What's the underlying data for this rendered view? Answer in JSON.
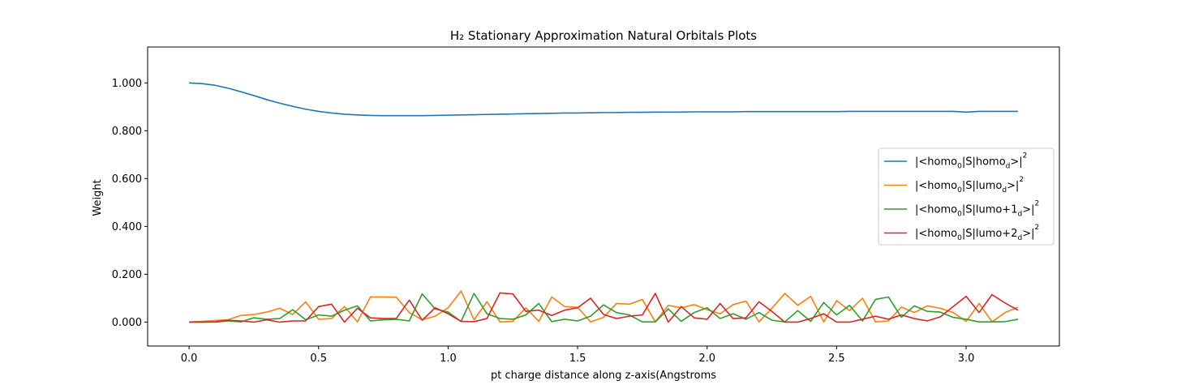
{
  "chart_data": {
    "type": "line",
    "title": "H₂ Stationary Approximation Natural Orbitals Plots",
    "xlabel": "pt charge distance along z-axis(Angstroms",
    "ylabel": "Weight",
    "xlim": [
      -0.16,
      3.36
    ],
    "ylim": [
      -0.1,
      1.15
    ],
    "xticks": [
      0.0,
      0.5,
      1.0,
      1.5,
      2.0,
      2.5,
      3.0
    ],
    "xtick_labels": [
      "0.0",
      "0.5",
      "1.0",
      "1.5",
      "2.0",
      "2.5",
      "3.0"
    ],
    "yticks": [
      0.0,
      0.2,
      0.4,
      0.6,
      0.8,
      1.0
    ],
    "ytick_labels": [
      "0.000",
      "0.200",
      "0.400",
      "0.600",
      "0.800",
      "1.000"
    ],
    "grid": false,
    "legend_position": "center-right",
    "x": [
      0.0,
      0.05,
      0.1,
      0.15,
      0.2,
      0.25,
      0.3,
      0.35,
      0.4,
      0.45,
      0.5,
      0.55,
      0.6,
      0.65,
      0.7,
      0.75,
      0.8,
      0.85,
      0.9,
      0.95,
      1.0,
      1.05,
      1.1,
      1.15,
      1.2,
      1.25,
      1.3,
      1.35,
      1.4,
      1.45,
      1.5,
      1.55,
      1.6,
      1.65,
      1.7,
      1.75,
      1.8,
      1.85,
      1.9,
      1.95,
      2.0,
      2.05,
      2.1,
      2.15,
      2.2,
      2.25,
      2.3,
      2.35,
      2.4,
      2.45,
      2.5,
      2.55,
      2.6,
      2.65,
      2.7,
      2.75,
      2.8,
      2.85,
      2.9,
      2.95,
      3.0,
      3.05,
      3.1,
      3.15,
      3.2
    ],
    "series": [
      {
        "name": "|<homo0|S|homod>|2",
        "label_parts": {
          "pre": "|<homo",
          "sub1": "0",
          "mid": "|S|homo",
          "sub2": "d",
          "post": ">|",
          "sup": "2"
        },
        "color": "#1f77b4",
        "values": [
          1.0,
          0.997,
          0.99,
          0.978,
          0.963,
          0.947,
          0.93,
          0.915,
          0.902,
          0.89,
          0.881,
          0.874,
          0.869,
          0.866,
          0.864,
          0.863,
          0.863,
          0.863,
          0.863,
          0.864,
          0.865,
          0.866,
          0.867,
          0.868,
          0.869,
          0.87,
          0.871,
          0.872,
          0.873,
          0.874,
          0.874,
          0.875,
          0.876,
          0.876,
          0.877,
          0.877,
          0.878,
          0.878,
          0.878,
          0.879,
          0.879,
          0.879,
          0.879,
          0.88,
          0.88,
          0.88,
          0.88,
          0.88,
          0.88,
          0.88,
          0.88,
          0.881,
          0.881,
          0.881,
          0.881,
          0.881,
          0.881,
          0.881,
          0.881,
          0.881,
          0.878,
          0.881,
          0.881,
          0.881,
          0.881
        ]
      },
      {
        "name": "|<homo0|S|lumod>|2",
        "label_parts": {
          "pre": "|<homo",
          "sub1": "0",
          "mid": "|S|lumo",
          "sub2": "d",
          "post": ">|",
          "sup": "2"
        },
        "color": "#ff7f0e",
        "values": [
          0.0,
          0.003,
          0.007,
          0.01,
          0.028,
          0.032,
          0.042,
          0.058,
          0.032,
          0.085,
          0.012,
          0.015,
          0.065,
          0.001,
          0.105,
          0.105,
          0.104,
          0.04,
          0.01,
          0.025,
          0.06,
          0.13,
          0.01,
          0.085,
          0.001,
          0.003,
          0.06,
          0.003,
          0.105,
          0.065,
          0.062,
          0.001,
          0.02,
          0.078,
          0.075,
          0.095,
          0.001,
          0.07,
          0.06,
          0.073,
          0.052,
          0.035,
          0.073,
          0.088,
          0.001,
          0.058,
          0.12,
          0.07,
          0.108,
          0.001,
          0.09,
          0.048,
          0.1,
          0.001,
          0.005,
          0.063,
          0.04,
          0.068,
          0.058,
          0.04,
          0.003,
          0.078,
          0.001,
          0.04,
          0.062
        ]
      },
      {
        "name": "|<homo0|S|lumo+1d>|2",
        "label_parts": {
          "pre": "|<homo",
          "sub1": "0",
          "mid": "|S|lumo+1",
          "sub2": "d",
          "post": ">|",
          "sup": "2"
        },
        "color": "#2ca02c",
        "values": [
          0.0,
          0.0,
          0.0,
          0.005,
          0.001,
          0.018,
          0.012,
          0.015,
          0.052,
          0.01,
          0.03,
          0.025,
          0.05,
          0.068,
          0.005,
          0.01,
          0.012,
          0.005,
          0.118,
          0.055,
          0.042,
          0.003,
          0.12,
          0.035,
          0.015,
          0.012,
          0.03,
          0.078,
          0.002,
          0.012,
          0.005,
          0.025,
          0.072,
          0.04,
          0.03,
          0.001,
          0.001,
          0.055,
          0.003,
          0.04,
          0.06,
          0.015,
          0.035,
          0.012,
          0.04,
          0.008,
          0.001,
          0.048,
          0.003,
          0.082,
          0.03,
          0.07,
          0.005,
          0.095,
          0.105,
          0.02,
          0.068,
          0.045,
          0.042,
          0.02,
          0.012,
          0.001,
          0.001,
          0.002,
          0.012
        ]
      },
      {
        "name": "|<homo0|S|lumo+2d>|2",
        "label_parts": {
          "pre": "|<homo",
          "sub1": "0",
          "mid": "|S|lumo+2",
          "sub2": "d",
          "post": ">|",
          "sup": "2"
        },
        "color": "#d62728",
        "values": [
          0.0,
          0.0,
          0.001,
          0.008,
          0.005,
          0.0,
          0.01,
          0.0,
          0.005,
          0.005,
          0.065,
          0.075,
          0.0,
          0.058,
          0.018,
          0.015,
          0.015,
          0.092,
          0.008,
          0.06,
          0.035,
          0.003,
          0.002,
          0.015,
          0.122,
          0.118,
          0.045,
          0.05,
          0.028,
          0.05,
          0.06,
          0.1,
          0.032,
          0.015,
          0.025,
          0.03,
          0.12,
          0.0,
          0.065,
          0.018,
          0.012,
          0.078,
          0.015,
          0.018,
          0.085,
          0.045,
          0.0,
          0.0,
          0.015,
          0.035,
          0.0,
          0.0,
          0.012,
          0.025,
          0.012,
          0.03,
          0.015,
          0.005,
          0.022,
          0.065,
          0.108,
          0.04,
          0.115,
          0.08,
          0.05
        ]
      }
    ]
  }
}
